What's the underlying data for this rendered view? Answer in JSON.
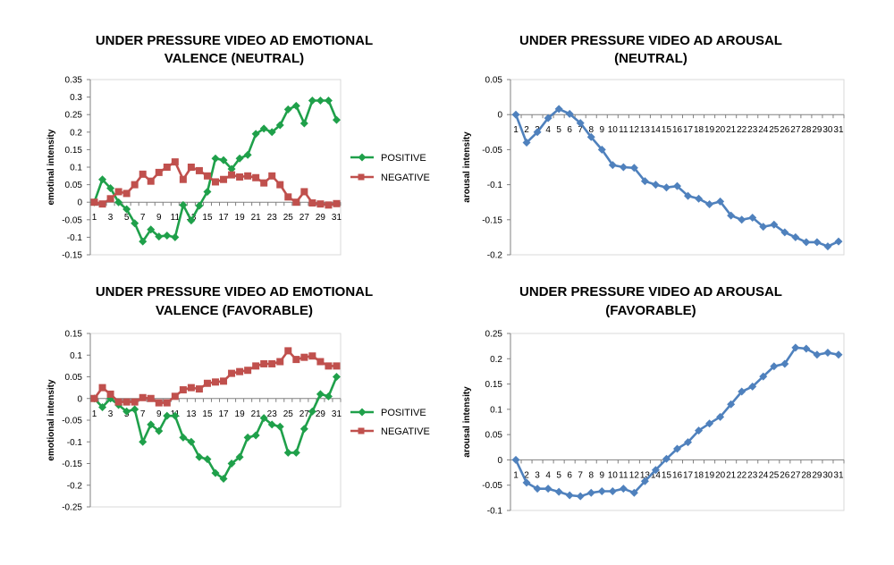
{
  "chart_data": [
    {
      "type": "line",
      "title": [
        "UNDER PRESSURE VIDEO AD EMOTIONAL",
        "VALENCE (NEUTRAL)"
      ],
      "xlabel": "",
      "ylabel": "emotinal intensity",
      "ylim": [
        -0.15,
        0.35
      ],
      "yticks": [
        "0.35",
        "0.3",
        "0.25",
        "0.2",
        "0.15",
        "0.1",
        "0.05",
        "0",
        "-0.05",
        "-0.1",
        "-0.15"
      ],
      "x": [
        1,
        2,
        3,
        4,
        5,
        6,
        7,
        8,
        9,
        10,
        11,
        12,
        13,
        14,
        15,
        16,
        17,
        18,
        19,
        20,
        21,
        22,
        23,
        24,
        25,
        26,
        27,
        28,
        29,
        30,
        31
      ],
      "xtick_labels": [
        "1",
        "3",
        "5",
        "7",
        "9",
        "11",
        "13",
        "15",
        "17",
        "19",
        "21",
        "23",
        "25",
        "27",
        "29",
        "31"
      ],
      "legend": "right",
      "series": [
        {
          "name": "POSITIVE",
          "color": "#1fa04a",
          "marker": "diamond",
          "values": [
            0.0,
            0.065,
            0.04,
            0.0,
            -0.02,
            -0.06,
            -0.112,
            -0.078,
            -0.098,
            -0.095,
            -0.1,
            -0.008,
            -0.052,
            -0.01,
            0.03,
            0.125,
            0.12,
            0.095,
            0.125,
            0.135,
            0.195,
            0.21,
            0.2,
            0.22,
            0.265,
            0.275,
            0.225,
            0.29,
            0.29,
            0.29,
            0.235
          ]
        },
        {
          "name": "NEGATIVE",
          "color": "#c0504d",
          "marker": "square",
          "values": [
            0.0,
            -0.005,
            0.01,
            0.03,
            0.025,
            0.05,
            0.08,
            0.06,
            0.085,
            0.1,
            0.115,
            0.065,
            0.1,
            0.09,
            0.075,
            0.058,
            0.065,
            0.078,
            0.072,
            0.075,
            0.07,
            0.055,
            0.075,
            0.05,
            0.015,
            0.0,
            0.03,
            -0.002,
            -0.005,
            -0.008,
            -0.004
          ]
        }
      ]
    },
    {
      "type": "line",
      "title": [
        "UNDER PRESSURE VIDEO AD AROUSAL",
        "(NEUTRAL)"
      ],
      "xlabel": "",
      "ylabel": "arousal intensity",
      "ylim": [
        -0.2,
        0.05
      ],
      "yticks": [
        "0.05",
        "0",
        "-0.05",
        "-0.1",
        "-0.15",
        "-0.2"
      ],
      "x": [
        1,
        2,
        3,
        4,
        5,
        6,
        7,
        8,
        9,
        10,
        11,
        12,
        13,
        14,
        15,
        16,
        17,
        18,
        19,
        20,
        21,
        22,
        23,
        24,
        25,
        26,
        27,
        28,
        29,
        30,
        31
      ],
      "xtick_labels": [
        "1",
        "2",
        "3",
        "4",
        "5",
        "6",
        "7",
        "8",
        "9",
        "10",
        "11",
        "12",
        "13",
        "14",
        "15",
        "16",
        "17",
        "18",
        "19",
        "20",
        "21",
        "22",
        "23",
        "24",
        "25",
        "26",
        "27",
        "28",
        "29",
        "30",
        "31"
      ],
      "legend": "none",
      "series": [
        {
          "name": "",
          "color": "#4f81bd",
          "marker": "diamond",
          "values": [
            0.0,
            -0.04,
            -0.025,
            -0.005,
            0.008,
            0.001,
            -0.012,
            -0.032,
            -0.05,
            -0.072,
            -0.075,
            -0.076,
            -0.095,
            -0.1,
            -0.104,
            -0.102,
            -0.116,
            -0.12,
            -0.128,
            -0.124,
            -0.144,
            -0.15,
            -0.147,
            -0.16,
            -0.157,
            -0.168,
            -0.175,
            -0.182,
            -0.182,
            -0.188,
            -0.181
          ]
        }
      ]
    },
    {
      "type": "line",
      "title": [
        "UNDER PRESSURE VIDEO AD EMOTIONAL",
        "VALENCE (FAVORABLE)"
      ],
      "xlabel": "",
      "ylabel": "emotional intensity",
      "ylim": [
        -0.25,
        0.15
      ],
      "yticks": [
        "0.15",
        "0.1",
        "0.05",
        "0",
        "-0.05",
        "-0.1",
        "-0.15",
        "-0.2",
        "-0.25"
      ],
      "x": [
        1,
        2,
        3,
        4,
        5,
        6,
        7,
        8,
        9,
        10,
        11,
        12,
        13,
        14,
        15,
        16,
        17,
        18,
        19,
        20,
        21,
        22,
        23,
        24,
        25,
        26,
        27,
        28,
        29,
        30,
        31
      ],
      "xtick_labels": [
        "1",
        "3",
        "5",
        "7",
        "9",
        "11",
        "13",
        "15",
        "17",
        "19",
        "21",
        "23",
        "25",
        "27",
        "29",
        "31"
      ],
      "legend": "right",
      "series": [
        {
          "name": "POSITIVE",
          "color": "#1fa04a",
          "marker": "diamond",
          "values": [
            0.0,
            -0.02,
            0.0,
            -0.015,
            -0.03,
            -0.025,
            -0.1,
            -0.06,
            -0.075,
            -0.04,
            -0.04,
            -0.09,
            -0.1,
            -0.135,
            -0.14,
            -0.172,
            -0.185,
            -0.15,
            -0.135,
            -0.09,
            -0.085,
            -0.045,
            -0.06,
            -0.065,
            -0.125,
            -0.125,
            -0.07,
            -0.03,
            0.01,
            0.005,
            0.05
          ]
        },
        {
          "name": "NEGATIVE",
          "color": "#c0504d",
          "marker": "square",
          "values": [
            0.0,
            0.025,
            0.01,
            -0.008,
            -0.008,
            -0.008,
            0.002,
            0.0,
            -0.01,
            -0.01,
            0.005,
            0.02,
            0.025,
            0.022,
            0.035,
            0.038,
            0.04,
            0.058,
            0.062,
            0.065,
            0.075,
            0.08,
            0.08,
            0.085,
            0.11,
            0.09,
            0.095,
            0.098,
            0.085,
            0.075,
            0.075
          ]
        }
      ]
    },
    {
      "type": "line",
      "title": [
        "UNDER PRESSURE VIDEO AD AROUSAL",
        "(FAVORABLE)"
      ],
      "xlabel": "",
      "ylabel": "arousal intensity",
      "ylim": [
        -0.1,
        0.25
      ],
      "yticks": [
        "0.25",
        "0.2",
        "0.15",
        "0.1",
        "0.05",
        "0",
        "-0.05",
        "-0.1"
      ],
      "x": [
        1,
        2,
        3,
        4,
        5,
        6,
        7,
        8,
        9,
        10,
        11,
        12,
        13,
        14,
        15,
        16,
        17,
        18,
        19,
        20,
        21,
        22,
        23,
        24,
        25,
        26,
        27,
        28,
        29,
        30,
        31
      ],
      "xtick_labels": [
        "1",
        "2",
        "3",
        "4",
        "5",
        "6",
        "7",
        "8",
        "9",
        "10",
        "11",
        "12",
        "13",
        "14",
        "15",
        "16",
        "17",
        "18",
        "19",
        "20",
        "21",
        "22",
        "23",
        "24",
        "25",
        "26",
        "27",
        "28",
        "29",
        "30",
        "31"
      ],
      "legend": "none",
      "series": [
        {
          "name": "",
          "color": "#4f81bd",
          "marker": "diamond",
          "values": [
            0.0,
            -0.045,
            -0.057,
            -0.057,
            -0.063,
            -0.07,
            -0.072,
            -0.065,
            -0.062,
            -0.062,
            -0.057,
            -0.065,
            -0.042,
            -0.02,
            0.002,
            0.022,
            0.035,
            0.058,
            0.072,
            0.085,
            0.11,
            0.135,
            0.145,
            0.165,
            0.185,
            0.19,
            0.222,
            0.22,
            0.208,
            0.212,
            0.208
          ]
        }
      ]
    }
  ]
}
